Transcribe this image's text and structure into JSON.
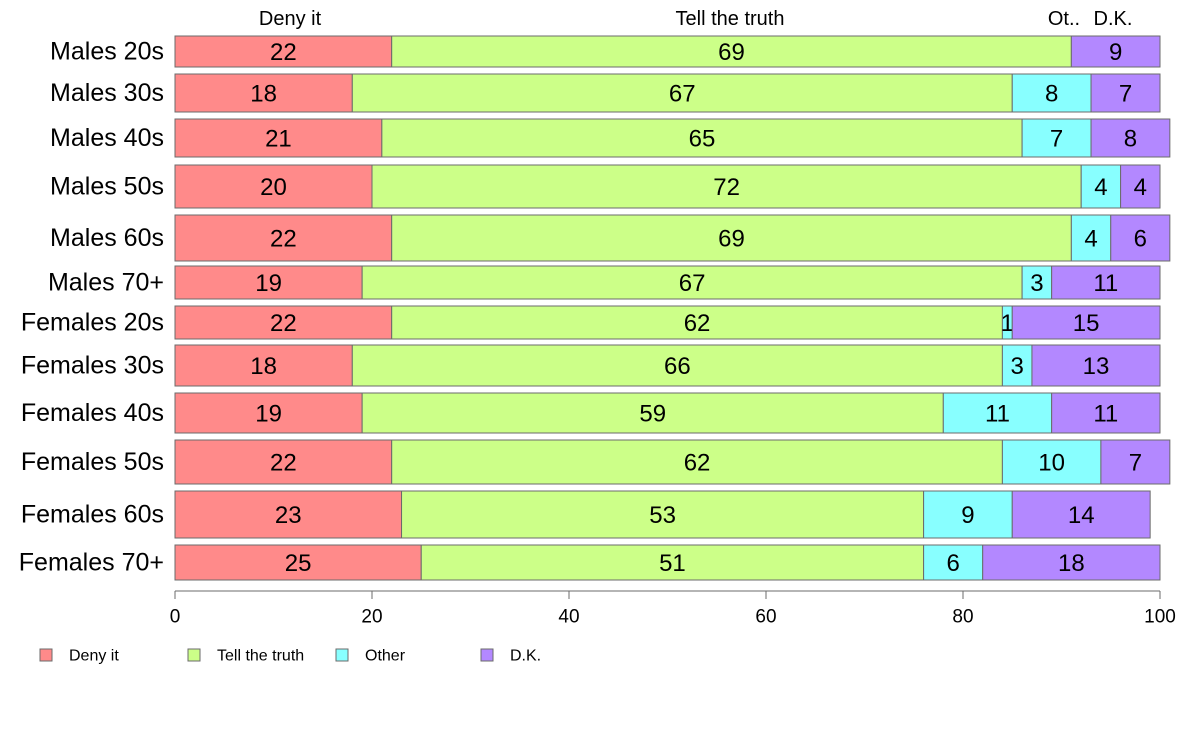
{
  "chart_data": {
    "type": "bar",
    "orientation": "horizontal",
    "stacked": true,
    "categories": [
      "Males 20s",
      "Males 30s",
      "Males 40s",
      "Males 50s",
      "Males 60s",
      "Males 70+",
      "Females 20s",
      "Females 30s",
      "Females 40s",
      "Females 50s",
      "Females 60s",
      "Females 70+"
    ],
    "series": [
      {
        "name": "Deny it",
        "color": "#FF8A8A",
        "values": [
          22,
          18,
          21,
          20,
          22,
          19,
          22,
          18,
          19,
          22,
          23,
          25
        ]
      },
      {
        "name": "Tell the truth",
        "color": "#CCFF88",
        "values": [
          69,
          67,
          65,
          72,
          69,
          67,
          62,
          66,
          59,
          62,
          53,
          51
        ]
      },
      {
        "name": "Other",
        "color": "#88FFFF",
        "values": [
          0,
          8,
          7,
          4,
          4,
          3,
          1,
          3,
          11,
          10,
          9,
          6
        ]
      },
      {
        "name": "D.K.",
        "color": "#B388FF",
        "values": [
          9,
          7,
          8,
          4,
          6,
          11,
          15,
          13,
          11,
          7,
          14,
          18
        ]
      }
    ],
    "segment_labels": [
      [
        "22",
        "69",
        "",
        "9"
      ],
      [
        "18",
        "67",
        "8",
        "7"
      ],
      [
        "21",
        "65",
        "7",
        "8"
      ],
      [
        "20",
        "72",
        "4",
        "4"
      ],
      [
        "22",
        "69",
        "4",
        "6"
      ],
      [
        "19",
        "67",
        "3",
        "11"
      ],
      [
        "22",
        "62",
        "1",
        "15"
      ],
      [
        "18",
        "66",
        "3",
        "13"
      ],
      [
        "19",
        "59",
        "11",
        "11"
      ],
      [
        "22",
        "62",
        "10",
        "7"
      ],
      [
        "23",
        "53",
        "9",
        "14"
      ],
      [
        "25",
        "51",
        "6",
        "18"
      ]
    ],
    "top_labels": [
      "Deny it",
      "Tell the truth",
      "Ot..",
      "D.K."
    ],
    "xlim": [
      0,
      100
    ],
    "xticks": [
      "0",
      "20",
      "40",
      "60",
      "80",
      "100"
    ],
    "grid": false,
    "legend": {
      "position": "bottom-left"
    }
  }
}
